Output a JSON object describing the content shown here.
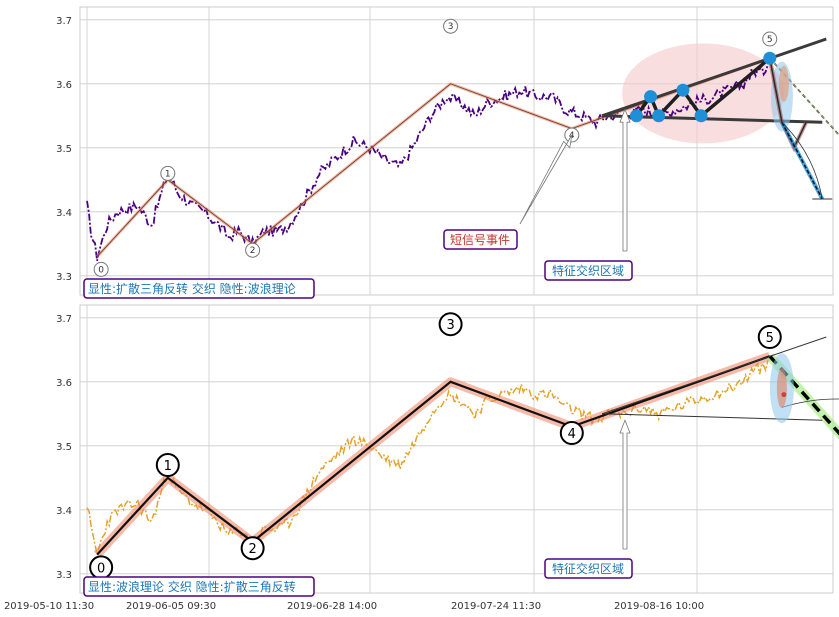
{
  "chart_data": [
    {
      "type": "line",
      "panel": "top",
      "y_ticks": [
        3.3,
        3.4,
        3.5,
        3.6,
        3.7
      ],
      "ylim": [
        3.27,
        3.72
      ],
      "x_tick_labels": [
        "2019-05-10 11:30",
        "2019-06-05 09:30",
        "2019-06-28 14:00",
        "2019-07-24 11:30",
        "2019-08-16 10:00"
      ],
      "grid": true,
      "price_series": {
        "style": "dash-dot",
        "color": "#4b0082",
        "anchors": [
          [
            0,
            3.41
          ],
          [
            2,
            3.37
          ],
          [
            5,
            3.33
          ],
          [
            10,
            3.38
          ],
          [
            15,
            3.4
          ],
          [
            25,
            3.41
          ],
          [
            32,
            3.38
          ],
          [
            40,
            3.46
          ],
          [
            45,
            3.43
          ],
          [
            52,
            3.41
          ],
          [
            58,
            3.4
          ],
          [
            65,
            3.38
          ],
          [
            70,
            3.36
          ],
          [
            75,
            3.37
          ],
          [
            82,
            3.35
          ],
          [
            88,
            3.37
          ],
          [
            95,
            3.37
          ],
          [
            100,
            3.38
          ],
          [
            106,
            3.41
          ],
          [
            115,
            3.46
          ],
          [
            125,
            3.49
          ],
          [
            132,
            3.51
          ],
          [
            140,
            3.5
          ],
          [
            148,
            3.48
          ],
          [
            155,
            3.47
          ],
          [
            163,
            3.51
          ],
          [
            170,
            3.55
          ],
          [
            178,
            3.58
          ],
          [
            185,
            3.57
          ],
          [
            192,
            3.55
          ],
          [
            198,
            3.57
          ],
          [
            206,
            3.58
          ],
          [
            215,
            3.59
          ],
          [
            222,
            3.58
          ],
          [
            230,
            3.58
          ],
          [
            237,
            3.56
          ],
          [
            245,
            3.55
          ],
          [
            252,
            3.54
          ],
          [
            258,
            3.55
          ],
          [
            266,
            3.55
          ],
          [
            275,
            3.56
          ],
          [
            283,
            3.55
          ],
          [
            292,
            3.56
          ],
          [
            300,
            3.57
          ],
          [
            310,
            3.58
          ],
          [
            318,
            3.59
          ],
          [
            325,
            3.6
          ],
          [
            330,
            3.62
          ],
          [
            335,
            3.62
          ],
          [
            338,
            3.64
          ]
        ]
      },
      "wave_points": [
        {
          "label": "0",
          "x": 5,
          "y": 3.33
        },
        {
          "label": "1",
          "x": 40,
          "y": 3.45
        },
        {
          "label": "2",
          "x": 82,
          "y": 3.35
        },
        {
          "label": "3",
          "x": 180,
          "y": 3.6
        },
        {
          "label": "4",
          "x": 240,
          "y": 3.53
        },
        {
          "label": "5",
          "x": 338,
          "y": 3.64
        }
      ],
      "wave_number_marks": [
        {
          "label": "0",
          "x": 7,
          "y": 3.31
        },
        {
          "label": "1",
          "x": 40,
          "y": 3.46
        },
        {
          "label": "2",
          "x": 82,
          "y": 3.34
        },
        {
          "label": "3",
          "x": 180,
          "y": 3.69
        },
        {
          "label": "4",
          "x": 240,
          "y": 3.52
        },
        {
          "label": "5",
          "x": 338,
          "y": 3.67
        }
      ],
      "projection": [
        [
          338,
          3.64
        ],
        [
          378,
          3.5
        ],
        [
          418,
          3.61
        ],
        [
          452,
          3.47
        ]
      ],
      "triangle_upper": [
        [
          255,
          3.55
        ],
        [
          366,
          3.67
        ]
      ],
      "triangle_lower": [
        [
          255,
          3.55
        ],
        [
          364,
          3.54
        ]
      ],
      "triangle_zigzag": [
        [
          272,
          3.55
        ],
        [
          279,
          3.58
        ],
        [
          283,
          3.55
        ],
        [
          295,
          3.59
        ],
        [
          304,
          3.55
        ],
        [
          338,
          3.64
        ]
      ],
      "triangle_nodes": [
        [
          272,
          3.55
        ],
        [
          279,
          3.58
        ],
        [
          283,
          3.55
        ],
        [
          295,
          3.59
        ],
        [
          304,
          3.55
        ],
        [
          338,
          3.64
        ]
      ],
      "triangle_reversal": [
        [
          338,
          3.64
        ],
        [
          344,
          3.54
        ],
        [
          350,
          3.5
        ],
        [
          356,
          3.54
        ]
      ],
      "short_projection": [
        [
          344,
          3.54
        ],
        [
          364,
          3.42
        ]
      ],
      "annotations": {
        "event_label": "短信号事件",
        "zone_label": "特征交织区域",
        "legend": "显性:扩散三角反转 交织 隐性:波浪理论"
      }
    },
    {
      "type": "line",
      "panel": "bottom",
      "y_ticks": [
        3.3,
        3.4,
        3.5,
        3.6,
        3.7
      ],
      "ylim": [
        3.27,
        3.72
      ],
      "x_tick_labels": [
        "2019-05-10 11:30",
        "2019-06-05 09:30",
        "2019-06-28 14:00",
        "2019-07-24 11:30",
        "2019-08-16 10:00"
      ],
      "grid": true,
      "price_series_color": "#e3a32a",
      "wave_points": [
        {
          "label": "0",
          "x": 5,
          "y": 3.33
        },
        {
          "label": "1",
          "x": 40,
          "y": 3.45
        },
        {
          "label": "2",
          "x": 82,
          "y": 3.35
        },
        {
          "label": "3",
          "x": 180,
          "y": 3.6
        },
        {
          "label": "4",
          "x": 240,
          "y": 3.53
        },
        {
          "label": "5",
          "x": 338,
          "y": 3.64
        }
      ],
      "wave_number_marks": [
        {
          "label": "0",
          "x": 7,
          "y": 3.31
        },
        {
          "label": "1",
          "x": 40,
          "y": 3.47
        },
        {
          "label": "2",
          "x": 82,
          "y": 3.34
        },
        {
          "label": "3",
          "x": 180,
          "y": 3.69
        },
        {
          "label": "4",
          "x": 240,
          "y": 3.52
        },
        {
          "label": "5",
          "x": 338,
          "y": 3.67
        }
      ],
      "projection": [
        [
          338,
          3.64
        ],
        [
          378,
          3.5
        ],
        [
          418,
          3.61
        ],
        [
          452,
          3.47
        ]
      ],
      "triangle_upper": [
        [
          255,
          3.55
        ],
        [
          366,
          3.67
        ]
      ],
      "triangle_lower": [
        [
          255,
          3.55
        ],
        [
          364,
          3.54
        ]
      ],
      "annotations": {
        "zone_label": "特征交织区域",
        "legend": "显性:波浪理论 交织 隐性:扩散三角反转"
      }
    }
  ],
  "colors": {
    "grid": "#cccccc",
    "top_price": "#4b0082",
    "bottom_price": "#e3a32a",
    "wave_halo": "#f08060",
    "projection_top": "#2d6a00",
    "projection_halo": "#aaee88",
    "triangle": "#2b2b2b",
    "triangle_fill": "#f5c8cc",
    "node": "#1f8fd8",
    "zone_fill": "#8ec6ea",
    "label_border": "#4b0082",
    "label_text_blue": "#1f77b4",
    "label_text_red": "#c0392b"
  }
}
